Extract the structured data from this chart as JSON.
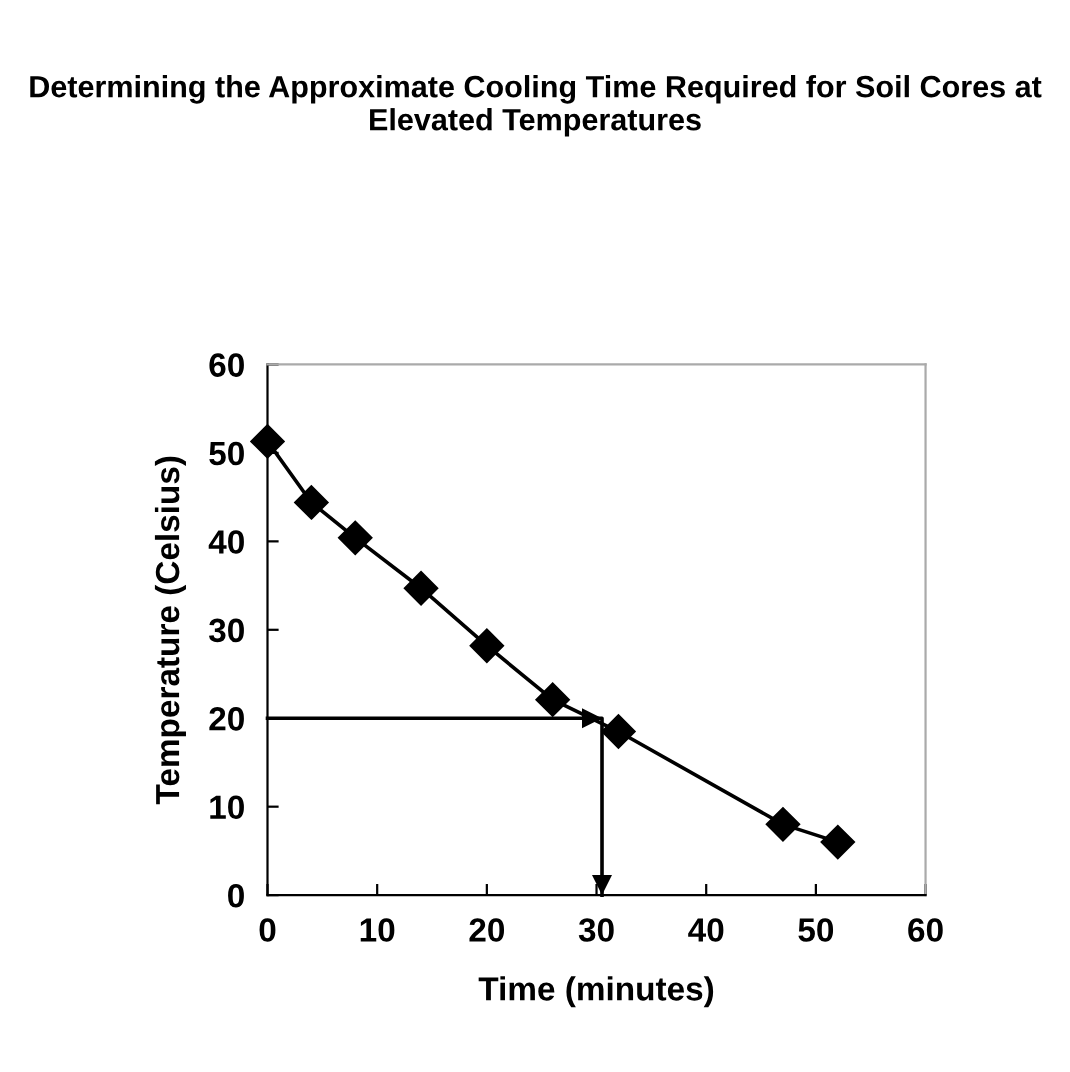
{
  "chart_data": {
    "type": "line",
    "title": "Determining the Approximate Cooling Time Required for Soil Cores at Elevated Temperatures",
    "xlabel": "Time (minutes)",
    "ylabel": "Temperature (Celsius)",
    "series": [
      {
        "color": "#000000",
        "marker": "diamond",
        "x": [
          0,
          4,
          8,
          14,
          20,
          26,
          32,
          47,
          52
        ],
        "values": [
          51.3,
          44.4,
          40.4,
          34.7,
          28.2,
          22.1,
          18.5,
          8,
          6
        ]
      },
      {
        "color": "#000000",
        "marker": "none",
        "x": [
          0,
          30.5,
          30.5
        ],
        "values": [
          20,
          20,
          0
        ]
      }
    ],
    "xlim": [
      0,
      60
    ],
    "xticks": [
      0,
      10,
      20,
      30,
      40,
      50,
      60
    ],
    "ylim": [
      0,
      60
    ],
    "yticks": [
      0,
      10,
      20,
      30,
      40,
      50,
      60
    ],
    "grid": false,
    "line_style": "solid"
  }
}
